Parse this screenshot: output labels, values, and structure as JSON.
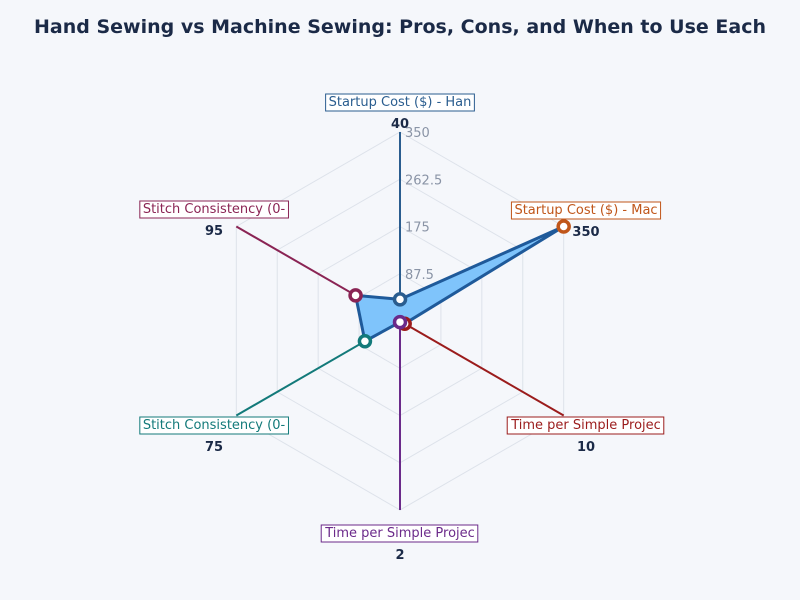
{
  "chart_data": {
    "type": "radar",
    "title": "Hand Sewing vs Machine Sewing: Pros, Cons, and When to Use Each",
    "categories": [
      "Startup Cost ($) - Han",
      "Startup Cost ($) - Mac",
      "Time per Simple Projec",
      "Time per Simple Projec",
      "Stitch Consistency (0-",
      "Stitch Consistency (0-"
    ],
    "values": [
      40,
      350,
      10,
      2,
      75,
      95
    ],
    "value_labels": [
      "40",
      "350",
      "10",
      "2",
      "75",
      "95"
    ],
    "radial_range": [
      0,
      350
    ],
    "radial_ticks": [
      "87.5",
      "175",
      "262.5",
      "350"
    ],
    "axis_colors": [
      "#2a5d8f",
      "#c0561a",
      "#9b1c1c",
      "#6b2a8a",
      "#137a7a",
      "#8a2454"
    ],
    "fill_color": "#7fc4fb",
    "line_color": "#1f5a9a",
    "grid": true
  }
}
